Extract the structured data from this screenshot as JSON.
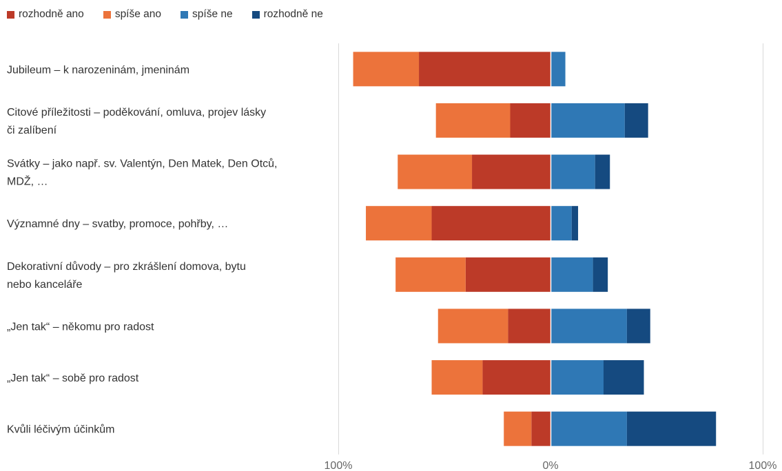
{
  "chart_data": {
    "type": "bar",
    "orientation": "horizontal",
    "stacking": "diverging",
    "categories": [
      [
        "Jubileum – k narozeninám, jmeninám"
      ],
      [
        "Citové příležitosti – poděkování, omluva, projev lásky",
        "či zalíbení"
      ],
      [
        "Svátky – jako např. sv. Valentýn, Den Matek, Den Otců,",
        "MDŽ, …"
      ],
      [
        "Významné dny – svatby, promoce, pohřby, …"
      ],
      [
        "Dekorativní důvody – pro zkrášlení domova, bytu",
        "nebo kanceláře"
      ],
      [
        "„Jen tak“ – někomu pro radost"
      ],
      [
        "„Jen tak“ – sobě pro radost"
      ],
      [
        "Kvůli léčivým účinkům"
      ]
    ],
    "series": [
      {
        "name": "rozhodně ano",
        "side": "negative",
        "color": "#bc3a28",
        "values": [
          62,
          19,
          37,
          56,
          40,
          20,
          32,
          9
        ]
      },
      {
        "name": "spíše ano",
        "side": "negative",
        "color": "#ec733b",
        "values": [
          31,
          35,
          35,
          31,
          33,
          33,
          24,
          13
        ]
      },
      {
        "name": "spíše ne",
        "side": "positive",
        "color": "#2f78b5",
        "values": [
          7,
          35,
          21,
          10,
          20,
          36,
          25,
          36
        ]
      },
      {
        "name": "rozhodně ne",
        "side": "positive",
        "color": "#154a80",
        "values": [
          0,
          11,
          7,
          3,
          7,
          11,
          19,
          42
        ]
      }
    ],
    "xlim": [
      -100,
      100
    ],
    "xticks": [
      {
        "value": -100,
        "label": "100%"
      },
      {
        "value": 0,
        "label": "0%"
      },
      {
        "value": 100,
        "label": "100%"
      }
    ],
    "grid": true,
    "legend_position": "top-left",
    "title": "",
    "xlabel": "",
    "ylabel": ""
  }
}
